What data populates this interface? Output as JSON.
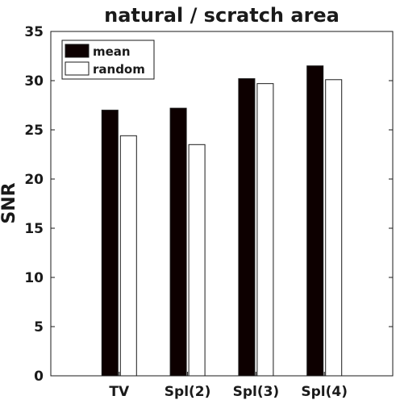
{
  "chart_data": {
    "type": "bar",
    "title": "natural / scratch area",
    "xlabel": "",
    "ylabel": "SNR",
    "categories": [
      "TV",
      "Spl(2)",
      "Spl(3)",
      "Spl(4)"
    ],
    "series": [
      {
        "name": "mean",
        "values": [
          27.0,
          27.2,
          30.2,
          31.5
        ],
        "color": "#0d0000"
      },
      {
        "name": "random",
        "values": [
          24.4,
          23.5,
          29.7,
          30.1
        ],
        "color": "#ffffff"
      }
    ],
    "ylim": [
      0,
      35
    ],
    "yticks": [
      "0",
      "5",
      "10",
      "15",
      "20",
      "25",
      "30",
      "35"
    ],
    "grid": false,
    "legend": "top-left"
  }
}
